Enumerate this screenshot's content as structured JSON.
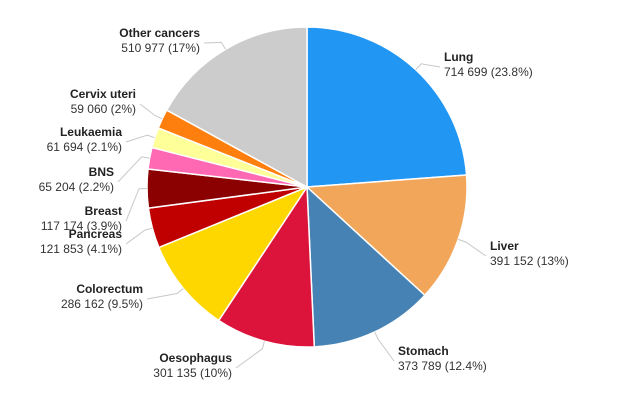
{
  "chart_data": {
    "type": "pie",
    "title": "",
    "start_angle_deg": 0,
    "direction": "clockwise",
    "slices": [
      {
        "name": "Lung",
        "value": 714699,
        "label": "714 699 (23.8%)",
        "percent": 23.8,
        "color": "#2196F3"
      },
      {
        "name": "Liver",
        "value": 391152,
        "label": "391 152 (13%)",
        "percent": 13,
        "color": "#F2A65A"
      },
      {
        "name": "Stomach",
        "value": 373789,
        "label": "373 789 (12.4%)",
        "percent": 12.4,
        "color": "#4682B4"
      },
      {
        "name": "Oesophagus",
        "value": 301135,
        "label": "301 135 (10%)",
        "percent": 10,
        "color": "#DC143C"
      },
      {
        "name": "Colorectum",
        "value": 286162,
        "label": "286 162 (9.5%)",
        "percent": 9.5,
        "color": "#FFD700"
      },
      {
        "name": "Pancreas",
        "value": 121853,
        "label": "121 853 (4.1%)",
        "percent": 4.1,
        "color": "#C00000"
      },
      {
        "name": "Breast",
        "value": 117174,
        "label": "117 174 (3.9%)",
        "percent": 3.9,
        "color": "#8B0000"
      },
      {
        "name": "BNS",
        "value": 65204,
        "label": "65 204 (2.2%)",
        "percent": 2.2,
        "color": "#FF69B4"
      },
      {
        "name": "Leukaemia",
        "value": 61694,
        "label": "61 694 (2.1%)",
        "percent": 2.1,
        "color": "#FFFF99"
      },
      {
        "name": "Cervix uteri",
        "value": 59060,
        "label": "59 060 (2%)",
        "percent": 2,
        "color": "#FF7F0E"
      },
      {
        "name": "Other cancers",
        "value": 510977,
        "label": "510 977 (17%)",
        "percent": 17,
        "color": "#CCCCCC"
      }
    ]
  }
}
